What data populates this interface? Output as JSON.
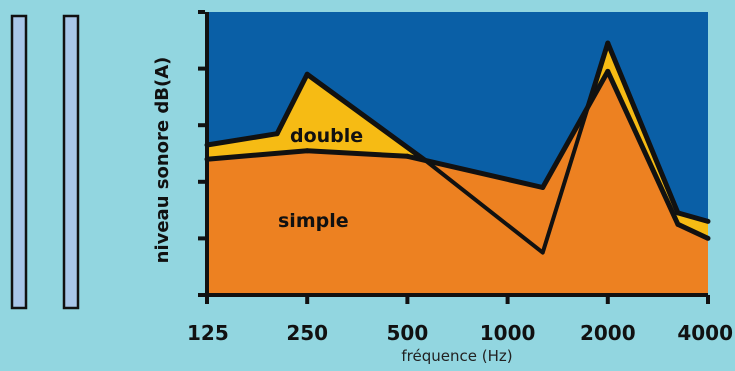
{
  "chart_data": {
    "type": "area",
    "categories": [
      "125",
      "250",
      "500",
      "1000",
      "2000",
      "4000"
    ],
    "xlabel": "fréquence (Hz)",
    "ylabel": "niveau sonore dB(A)",
    "ylim": [
      0,
      5
    ],
    "series": [
      {
        "name": "double",
        "x": [
          0,
          0.7,
          1,
          2.2,
          3.35,
          4,
          4.7,
          5
        ],
        "values": [
          2.65,
          2.85,
          3.9,
          2.35,
          0.75,
          4.45,
          1.45,
          1.3
        ]
      },
      {
        "name": "simple",
        "x": [
          0,
          1,
          2,
          3.35,
          4,
          4.7,
          5
        ],
        "values": [
          2.4,
          2.55,
          2.45,
          1.9,
          3.95,
          1.25,
          1.0
        ]
      }
    ]
  },
  "colors": {
    "background": "#92d6e0",
    "plot_background": "#0a5fa6",
    "double": "#f6bb14",
    "simple": "#ed8121",
    "outline": "#111111",
    "panel": "#a8c6e8"
  },
  "decor": {
    "panels": 2
  }
}
